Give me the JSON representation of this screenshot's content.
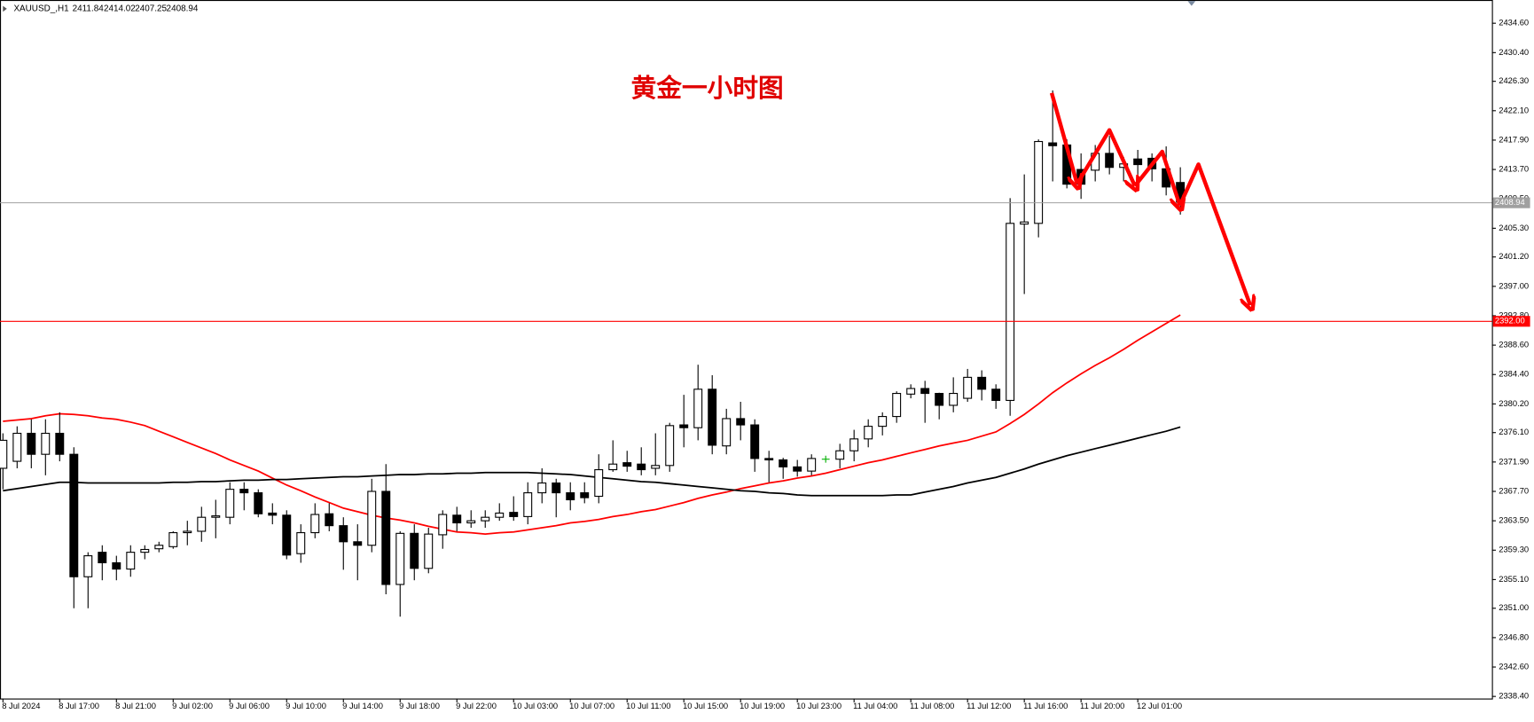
{
  "chart_data": {
    "type": "candlestick",
    "symbol": "XAUUSD_,H1",
    "annotation": "黄金一小时图",
    "categories": [
      "8 Jul 2024",
      null,
      null,
      null,
      "8 Jul 17:00",
      null,
      null,
      null,
      "8 Jul 21:00",
      null,
      null,
      null,
      "9 Jul 02:00",
      null,
      null,
      null,
      "9 Jul 06:00",
      null,
      null,
      null,
      "9 Jul 10:00",
      null,
      null,
      null,
      "9 Jul 14:00",
      null,
      null,
      null,
      "9 Jul 18:00",
      null,
      null,
      null,
      "9 Jul 22:00",
      null,
      null,
      null,
      "10 Jul 03:00",
      null,
      null,
      null,
      "10 Jul 07:00",
      null,
      null,
      null,
      "10 Jul 11:00",
      null,
      null,
      null,
      "10 Jul 15:00",
      null,
      null,
      null,
      "10 Jul 19:00",
      null,
      null,
      null,
      "10 Jul 23:00",
      null,
      null,
      null,
      "11 Jul 04:00",
      null,
      null,
      null,
      "11 Jul 08:00",
      null,
      null,
      null,
      "11 Jul 12:00",
      null,
      null,
      null,
      "11 Jul 16:00",
      null,
      null,
      null,
      "11 Jul 20:00",
      null,
      null,
      null,
      "12 Jul 01:00",
      null,
      null,
      null
    ],
    "open": [
      2371,
      2372,
      2376,
      2373,
      2376,
      2373,
      2355.5,
      2359,
      2357.5,
      2356.6,
      2359,
      2359.5,
      2359.8,
      2361.8,
      2362,
      2364,
      2364,
      2368,
      2367.5,
      2364.6,
      2364.3,
      2358.8,
      2361.8,
      2364.5,
      2362.8,
      2360.5,
      2360,
      2367.7,
      2354.4,
      2361.7,
      2356.7,
      2361.5,
      2364.3,
      2363.2,
      2363.5,
      2364,
      2364.7,
      2364.1,
      2367.5,
      2368.9,
      2367.5,
      2367.5,
      2367,
      2370.8,
      2371.8,
      2371.6,
      2371,
      2371.4,
      2377.2,
      2376.8,
      2382.3,
      2374.2,
      2378.1,
      2377.2,
      2372.4,
      2372.2,
      2371.2,
      2370.6,
      2372.3,
      2372.3,
      2373.5,
      2375.2,
      2377,
      2378.4,
      2381.6,
      2382.4,
      2381.7,
      2380,
      2381,
      2384,
      2382.3,
      2380.7,
      2405.9,
      2406,
      2417.5,
      2417.2,
      2413.7,
      2413.6,
      2416,
      2414,
      2415.2,
      2415.3,
      2413.8,
      2411.84
    ],
    "high": [
      2376,
      2377,
      2378,
      2378,
      2379,
      2374,
      2359,
      2360,
      2358.5,
      2360,
      2360,
      2360.5,
      2362,
      2363.5,
      2365.5,
      2366.5,
      2369,
      2369,
      2368,
      2366,
      2365,
      2363,
      2366,
      2366,
      2364,
      2363,
      2369.5,
      2371.6,
      2362,
      2363,
      2362.5,
      2365,
      2365.5,
      2365,
      2365,
      2366,
      2367,
      2369,
      2371,
      2369.5,
      2369,
      2369,
      2373,
      2375,
      2373.5,
      2374,
      2376,
      2377.5,
      2381.5,
      2385.8,
      2384.3,
      2379.5,
      2380.5,
      2378,
      2373.5,
      2372.5,
      2372.2,
      2373,
      2372.8,
      2374.5,
      2376.5,
      2378,
      2379,
      2382,
      2383,
      2383.5,
      2381.8,
      2384,
      2385.2,
      2385,
      2383,
      2409.6,
      2413,
      2418,
      2425,
      2418,
      2416,
      2417.2,
      2418.5,
      2415.5,
      2416.5,
      2416,
      2417,
      2414.02
    ],
    "low": [
      2368,
      2371,
      2371,
      2370,
      2372,
      2351,
      2351,
      2355,
      2355,
      2355.5,
      2358,
      2359,
      2359.5,
      2360,
      2360.5,
      2361,
      2363,
      2365,
      2364,
      2363,
      2358,
      2357.5,
      2361,
      2362,
      2356.5,
      2355,
      2359,
      2353,
      2349.8,
      2355,
      2356,
      2359.5,
      2362,
      2362.5,
      2362.5,
      2363.5,
      2363.5,
      2363,
      2366,
      2364,
      2365,
      2366,
      2366,
      2370.5,
      2370.5,
      2370,
      2370,
      2370.5,
      2374,
      2375,
      2373,
      2373,
      2375,
      2370.5,
      2369,
      2369.5,
      2369.8,
      2370,
      2371.8,
      2371,
      2372,
      2374,
      2375.7,
      2377.5,
      2381,
      2377.5,
      2378,
      2379,
      2380.5,
      2380.7,
      2379.5,
      2378.5,
      2395.9,
      2404,
      2412,
      2411,
      2409.5,
      2412,
      2413,
      2412,
      2412.5,
      2412,
      2410,
      2407.25
    ],
    "close": [
      2375,
      2376,
      2373,
      2376,
      2373,
      2355.5,
      2358.5,
      2357.5,
      2356.6,
      2359,
      2359.4,
      2360,
      2361.8,
      2362,
      2364,
      2364.2,
      2368,
      2367.5,
      2364.5,
      2364.3,
      2358.6,
      2361.8,
      2364.4,
      2362.8,
      2360.5,
      2360,
      2367.7,
      2354.4,
      2361.7,
      2356.7,
      2361.6,
      2364.4,
      2363.2,
      2363.5,
      2364,
      2364.6,
      2364.1,
      2367.5,
      2368.9,
      2367.5,
      2366.5,
      2366.8,
      2370.8,
      2371.6,
      2371.3,
      2370.8,
      2371.4,
      2377.1,
      2376.8,
      2382.3,
      2374.3,
      2378.1,
      2377.2,
      2372.4,
      2372.2,
      2371.2,
      2370.6,
      2372.4,
      2372.3,
      2373.5,
      2375.2,
      2377,
      2378.4,
      2381.7,
      2382.4,
      2381.7,
      2380,
      2381.7,
      2384,
      2382.3,
      2380.7,
      2406,
      2406.2,
      2417.7,
      2417.1,
      2411.6,
      2411.6,
      2416,
      2414,
      2414.5,
      2414.4,
      2413.8,
      2411.2,
      2408.94
    ],
    "lines": [
      {
        "color": "#ff0000",
        "values": [
          2377.7,
          2377.9,
          2378.1,
          2378.5,
          2378.8,
          2378.7,
          2378.5,
          2378.2,
          2378.0,
          2377.6,
          2377.1,
          2376.3,
          2375.5,
          2374.7,
          2373.9,
          2373.1,
          2372.2,
          2371.4,
          2370.6,
          2369.6,
          2368.6,
          2367.8,
          2366.9,
          2366.1,
          2365.3,
          2364.8,
          2364.3,
          2363.9,
          2363.6,
          2363.2,
          2362.7,
          2362.3,
          2361.9,
          2361.8,
          2361.6,
          2361.8,
          2361.9,
          2362.2,
          2362.5,
          2362.8,
          2363.2,
          2363.4,
          2363.7,
          2364.1,
          2364.4,
          2364.8,
          2365.1,
          2365.6,
          2366.1,
          2366.7,
          2367.2,
          2367.6,
          2368.1,
          2368.5,
          2368.9,
          2369.2,
          2369.6,
          2369.9,
          2370.3,
          2370.8,
          2371.3,
          2371.8,
          2372.2,
          2372.7,
          2373.2,
          2373.7,
          2374.2,
          2374.6,
          2375.0,
          2375.6,
          2376.2,
          2377.4,
          2378.7,
          2380.2,
          2381.8,
          2383.2,
          2384.5,
          2385.7,
          2386.8,
          2388.0,
          2389.3,
          2390.5,
          2391.7,
          2392.9
        ]
      },
      {
        "color": "#000000",
        "values": [
          2367.8,
          2368.1,
          2368.4,
          2368.7,
          2369.0,
          2369.0,
          2368.9,
          2368.9,
          2368.9,
          2368.9,
          2368.9,
          2368.9,
          2369.0,
          2369.0,
          2369.1,
          2369.1,
          2369.2,
          2369.3,
          2369.3,
          2369.4,
          2369.4,
          2369.5,
          2369.6,
          2369.7,
          2369.8,
          2369.8,
          2369.9,
          2370.0,
          2370.1,
          2370.1,
          2370.2,
          2370.2,
          2370.3,
          2370.3,
          2370.4,
          2370.4,
          2370.4,
          2370.4,
          2370.3,
          2370.2,
          2370.1,
          2369.9,
          2369.7,
          2369.5,
          2369.3,
          2369.1,
          2369.0,
          2368.8,
          2368.6,
          2368.4,
          2368.2,
          2368.0,
          2367.8,
          2367.7,
          2367.5,
          2367.4,
          2367.2,
          2367.1,
          2367.1,
          2367.1,
          2367.1,
          2367.1,
          2367.1,
          2367.2,
          2367.2,
          2367.6,
          2368.0,
          2368.4,
          2368.9,
          2369.3,
          2369.7,
          2370.3,
          2370.9,
          2371.6,
          2372.2,
          2372.8,
          2373.3,
          2373.8,
          2374.3,
          2374.8,
          2375.3,
          2375.8,
          2376.3,
          2376.9
        ]
      }
    ],
    "up_color": "#ffffff",
    "down_color": "#000000",
    "doji_color": "#00b000",
    "last_price_color": "#a0a0a0",
    "levels": [
      {
        "value": 2392,
        "label": "2392.00",
        "color": "#ff0000"
      }
    ],
    "ylim": [
      2338.1,
      2437.5
    ],
    "yticks": [
      {
        "value": 2338.4,
        "label": "2338.40"
      },
      {
        "value": 2342.6,
        "label": "2342.60"
      },
      {
        "value": 2346.8,
        "label": "2346.80"
      },
      {
        "value": 2351,
        "label": "2351.00"
      },
      {
        "value": 2355.1,
        "label": "2355.10"
      },
      {
        "value": 2359.3,
        "label": "2359.30"
      },
      {
        "value": 2363.5,
        "label": "2363.50"
      },
      {
        "value": 2367.7,
        "label": "2367.70"
      },
      {
        "value": 2371.9,
        "label": "2371.90"
      },
      {
        "value": 2376.1,
        "label": "2376.10"
      },
      {
        "value": 2380.2,
        "label": "2380.20"
      },
      {
        "value": 2384.4,
        "label": "2384.40"
      },
      {
        "value": 2388.6,
        "label": "2388.60"
      },
      {
        "value": 2392.8,
        "label": "2392.80"
      },
      {
        "value": 2397,
        "label": "2397.00"
      },
      {
        "value": 2401.2,
        "label": "2401.20"
      },
      {
        "value": 2405.3,
        "label": "2405.30"
      },
      {
        "value": 2409.5,
        "label": "2409.50"
      },
      {
        "value": 2413.7,
        "label": "2413.70"
      },
      {
        "value": 2417.9,
        "label": "2417.90"
      },
      {
        "value": 2422.1,
        "label": "2422.10"
      },
      {
        "value": 2426.3,
        "label": "2426.30"
      },
      {
        "value": 2430.4,
        "label": "2430.40"
      },
      {
        "value": 2434.6,
        "label": "2434.60"
      }
    ]
  }
}
